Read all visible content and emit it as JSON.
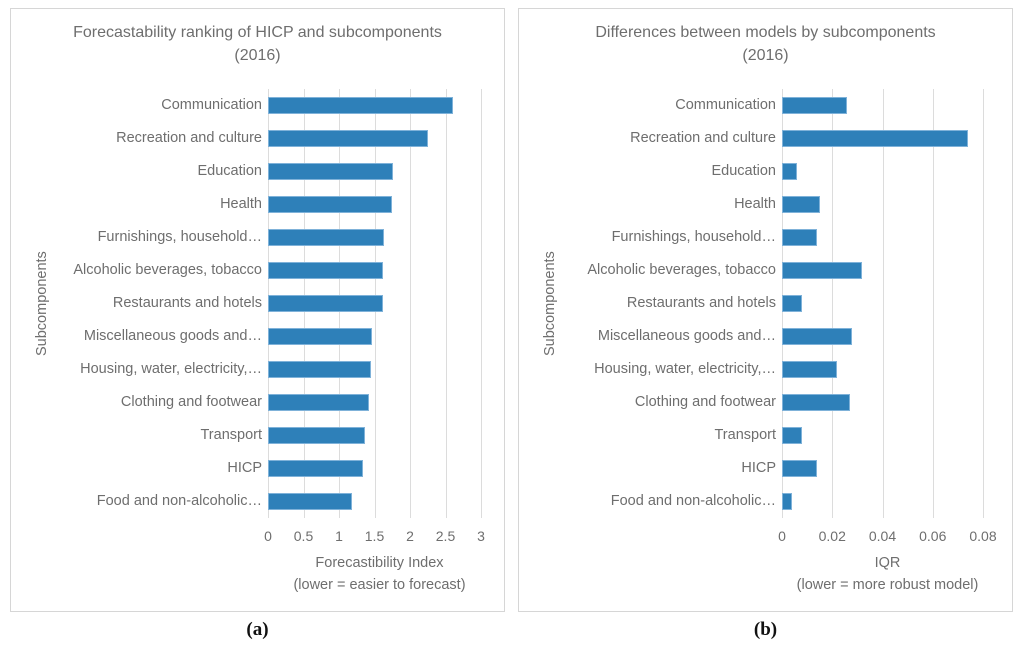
{
  "colors": {
    "bar": "#2e80b9",
    "bar_edge": "#7fb2d9",
    "gridline": "#dcdcdc",
    "text_gray": "#6e6e6e",
    "panel_border": "#d6d6d6",
    "caption_black": "#111111"
  },
  "captions": {
    "a": "(a)",
    "b": "(b)"
  },
  "chart_data": [
    {
      "type": "bar",
      "orientation": "horizontal",
      "title": "Forecastability ranking of HICP and subcomponents",
      "subtitle": "(2016)",
      "ylabel": "Subcomponents",
      "xlabel": "Forecastibility Index",
      "xlabel_note": "(lower = easier to forecast)",
      "xlim": [
        0,
        3
      ],
      "grid": true,
      "legend": "none",
      "categories": [
        "Communication",
        "Recreation and culture",
        "Education",
        "Health",
        "Furnishings, household…",
        "Alcoholic beverages, tobacco",
        "Restaurants and hotels",
        "Miscellaneous goods and…",
        "Housing, water, electricity,…",
        "Clothing and footwear",
        "Transport",
        "HICP",
        "Food and non-alcoholic…"
      ],
      "values": [
        2.6,
        2.25,
        1.76,
        1.74,
        1.64,
        1.62,
        1.62,
        1.46,
        1.45,
        1.42,
        1.36,
        1.34,
        1.19
      ],
      "xticks": [
        {
          "value": 0,
          "label": "0"
        },
        {
          "value": 0.5,
          "label": "0.5"
        },
        {
          "value": 1,
          "label": "1"
        },
        {
          "value": 1.5,
          "label": "1.5"
        },
        {
          "value": 2,
          "label": "2"
        },
        {
          "value": 2.5,
          "label": "2.5"
        },
        {
          "value": 3,
          "label": "3"
        }
      ]
    },
    {
      "type": "bar",
      "orientation": "horizontal",
      "title": "Differences between models by subcomponents",
      "subtitle": "(2016)",
      "ylabel": "Subcomponents",
      "xlabel": "IQR",
      "xlabel_note": "(lower = more robust model)",
      "xlim": [
        0,
        0.08
      ],
      "grid": true,
      "legend": "none",
      "categories": [
        "Communication",
        "Recreation and culture",
        "Education",
        "Health",
        "Furnishings, household…",
        "Alcoholic beverages, tobacco",
        "Restaurants and hotels",
        "Miscellaneous goods and…",
        "Housing, water, electricity,…",
        "Clothing and footwear",
        "Transport",
        "HICP",
        "Food and non-alcoholic…"
      ],
      "values": [
        0.026,
        0.074,
        0.006,
        0.015,
        0.014,
        0.032,
        0.008,
        0.028,
        0.022,
        0.027,
        0.008,
        0.014,
        0.004
      ],
      "xticks": [
        {
          "value": 0,
          "label": "0"
        },
        {
          "value": 0.02,
          "label": "0.02"
        },
        {
          "value": 0.04,
          "label": "0.04"
        },
        {
          "value": 0.06,
          "label": "0.06"
        },
        {
          "value": 0.08,
          "label": "0.08"
        }
      ]
    }
  ]
}
